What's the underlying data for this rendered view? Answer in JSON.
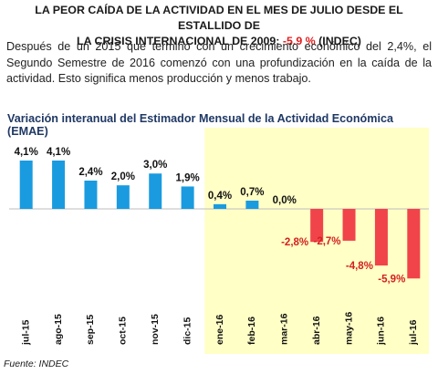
{
  "headline": {
    "line1": "LA PEOR CAÍDA DE LA ACTIVIDAD EN EL MES DE JULIO DESDE EL ESTALLIDO DE",
    "line2_prefix": "LA CRISIS INTERNACIONAL DE 2009: ",
    "line2_value": "-5.9 %",
    "line2_suffix": " (INDEC)"
  },
  "intro": "Después de un 2015 que terminó con un crecimiento económico del 2,4%, el Segundo Semestre de 2016 comenzó con una profundización en la caída de la actividad. Esto significa menos producción y menos trabajo.",
  "colors": {
    "positive_bar": "#1a9be0",
    "negative_bar": "#f0444a",
    "highlight_bg": "#ffffc6",
    "headline_red": "#e02020",
    "title_blue": "#1f3864"
  },
  "chart_data": {
    "type": "bar",
    "title": "Variación interanual del Estimador Mensual de la Actividad Económica (EMAE)",
    "categories": [
      "jul-15",
      "ago-15",
      "sep-15",
      "oct-15",
      "nov-15",
      "dic-15",
      "ene-16",
      "feb-16",
      "mar-16",
      "abr-16",
      "may-16",
      "jun-16",
      "jul-16"
    ],
    "values": [
      4.1,
      4.1,
      2.4,
      2.0,
      3.0,
      1.9,
      0.4,
      0.7,
      0.0,
      -2.8,
      -2.7,
      -4.8,
      -5.9
    ],
    "data_labels": [
      "4,1%",
      "4,1%",
      "2,4%",
      "2,0%",
      "3,0%",
      "1,9%",
      "0,4%",
      "0,7%",
      "0,0%",
      "-2,8%",
      "-2,7%",
      "-4,8%",
      "-5,9%"
    ],
    "highlighted_range": [
      "ene-16",
      "jul-16"
    ],
    "ylim": [
      -6.5,
      5.0
    ],
    "xlabel": "",
    "ylabel": "",
    "grid": false,
    "legend": "none"
  },
  "source": "Fuente: INDEC"
}
